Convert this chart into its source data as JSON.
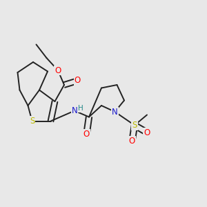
{
  "background_color": "#e8e8e8",
  "bond_color": "#222222",
  "bond_width": 1.4,
  "atom_colors": {
    "O": "#ff0000",
    "S_yellow": "#bbbb00",
    "N": "#1a1acc",
    "H": "#228888",
    "C": "#222222"
  },
  "font_size_atom": 8.5,
  "font_size_H": 7.5
}
